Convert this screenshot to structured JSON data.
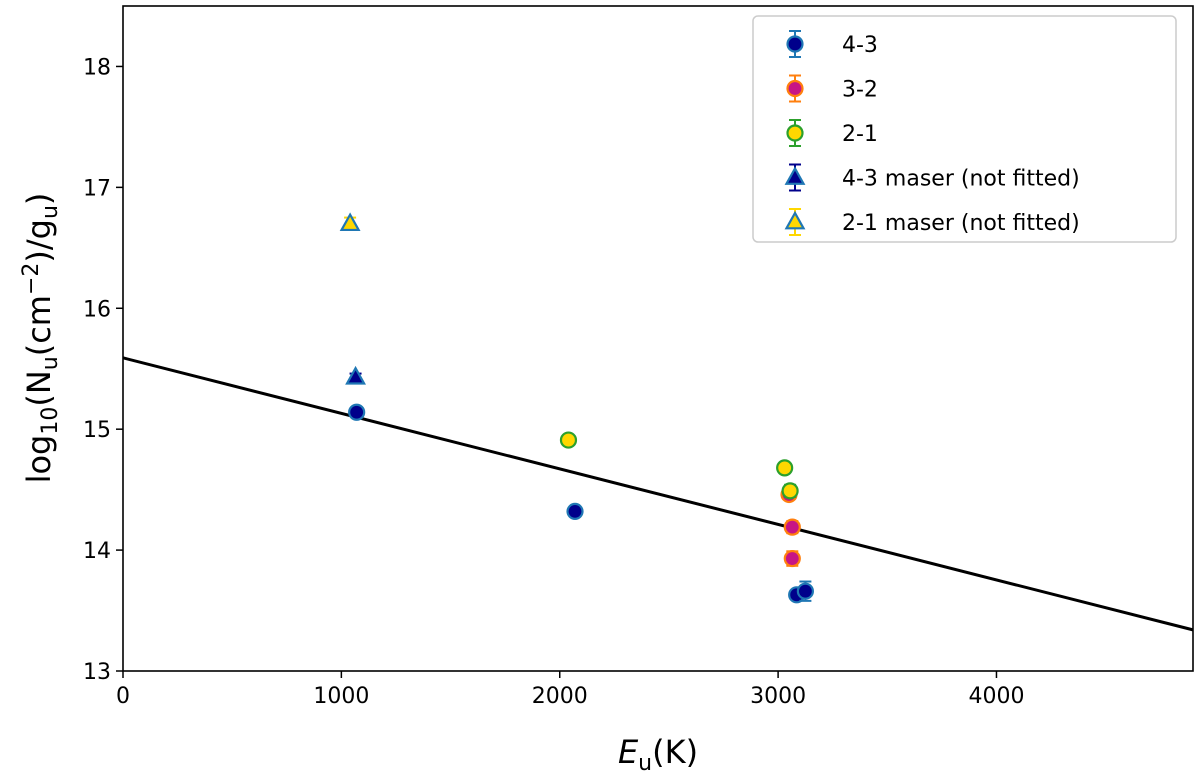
{
  "chart_data": {
    "type": "scatter",
    "title": "",
    "xlabel": {
      "main": "E",
      "sub": "u",
      "rest": "(K)"
    },
    "ylabel": {
      "pre": "log",
      "sub1": "10",
      "mid": "(N",
      "sub2": "u",
      "mid2": "(cm",
      "sup": "−2",
      "mid3": ")/g",
      "sub3": "u",
      "end": ")"
    },
    "xlim": [
      0,
      4900
    ],
    "ylim": [
      13,
      18.5
    ],
    "xticks": [
      0,
      1000,
      2000,
      3000,
      4000
    ],
    "yticks": [
      13,
      14,
      15,
      16,
      17,
      18
    ],
    "legend_position": "top-right",
    "fit_line": {
      "x": [
        0,
        4900
      ],
      "y": [
        15.59,
        13.34
      ],
      "color": "#000000"
    },
    "series": [
      {
        "name": "4-3",
        "marker": "circle",
        "face": "#00008b",
        "edge": "#1f77b4",
        "errcolor": "#1f77b4",
        "points": [
          {
            "x": 1070,
            "y": 15.14,
            "err": 0.03
          },
          {
            "x": 2070,
            "y": 14.32,
            "err": 0.03
          },
          {
            "x": 3085,
            "y": 13.63,
            "err": 0.04
          },
          {
            "x": 3125,
            "y": 13.66,
            "err": 0.08
          }
        ]
      },
      {
        "name": "3-2",
        "marker": "circle",
        "face": "#c71585",
        "edge": "#ff7f0e",
        "errcolor": "#ff7f0e",
        "points": [
          {
            "x": 3050,
            "y": 14.46,
            "err": 0.04
          },
          {
            "x": 3065,
            "y": 14.19,
            "err": 0.05
          },
          {
            "x": 3065,
            "y": 13.93,
            "err": 0.06
          }
        ]
      },
      {
        "name": "2-1",
        "marker": "circle",
        "face": "#ffd700",
        "edge": "#2ca02c",
        "errcolor": "#2ca02c",
        "points": [
          {
            "x": 2040,
            "y": 14.91,
            "err": 0.04
          },
          {
            "x": 3030,
            "y": 14.68,
            "err": 0.04
          },
          {
            "x": 3055,
            "y": 14.49,
            "err": 0.05
          }
        ]
      },
      {
        "name": "4-3 maser (not fitted)",
        "marker": "triangle",
        "face": "#00008b",
        "edge": "#1f77b4",
        "errcolor": "#00008b",
        "points": [
          {
            "x": 1065,
            "y": 15.43,
            "err": 0.03
          }
        ]
      },
      {
        "name": "2-1 maser (not fitted)",
        "marker": "triangle",
        "face": "#ffd700",
        "edge": "#1f77b4",
        "errcolor": "#ffd700",
        "points": [
          {
            "x": 1040,
            "y": 16.7,
            "err": 0.05
          }
        ]
      }
    ]
  }
}
